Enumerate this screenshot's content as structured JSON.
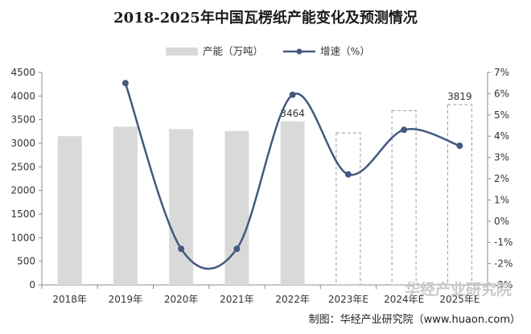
{
  "chart_data": {
    "type": "bar+line",
    "title": "2018-2025年中国瓦楞纸产能变化及预测情况",
    "categories": [
      "2018年",
      "2019年",
      "2020年",
      "2021年",
      "2022年",
      "2023年E",
      "2024年E",
      "2025年E"
    ],
    "series": [
      {
        "name": "产能（万吨）",
        "type": "bar",
        "axis": "left",
        "values": [
          3150,
          3350,
          3300,
          3260,
          3464,
          3220,
          3690,
          3819
        ],
        "forecast_from_index": 5,
        "data_labels": {
          "4": "3464",
          "7": "3819"
        }
      },
      {
        "name": "增速（%）",
        "type": "line",
        "axis": "right",
        "values": [
          null,
          6.5,
          -1.3,
          -1.3,
          5.95,
          2.2,
          4.3,
          3.55
        ]
      }
    ],
    "y_left": {
      "min": 0,
      "max": 4500,
      "step": 500,
      "ticks": [
        "0",
        "500",
        "1000",
        "1500",
        "2000",
        "2500",
        "3000",
        "3500",
        "4000",
        "4500"
      ]
    },
    "y_right": {
      "min": -3,
      "max": 7,
      "step": 1,
      "ticks": [
        "-3%",
        "-2%",
        "-1%",
        "0%",
        "1%",
        "2%",
        "3%",
        "4%",
        "5%",
        "6%",
        "7%"
      ]
    },
    "legend_position": "top-center",
    "grid": false,
    "colors": {
      "bar": "#d9d9d9",
      "forecast_border": "#9a9a9a",
      "line": "#44597f",
      "axis": "#8c8c8c"
    }
  },
  "footer": {
    "source": "制图：华经产业研究院（www.huaon.com）",
    "watermark": "华经产业研究院"
  }
}
